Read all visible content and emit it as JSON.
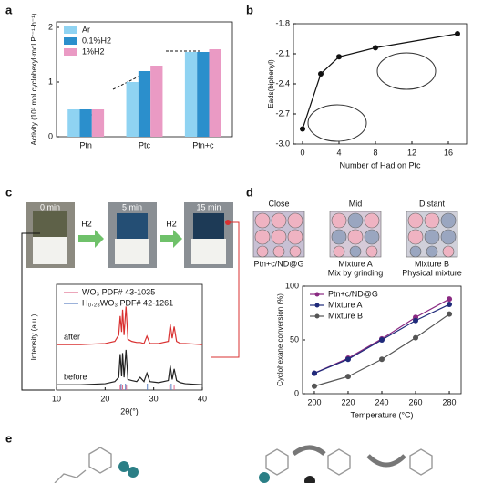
{
  "panel_labels": [
    "a",
    "b",
    "c",
    "d",
    "e"
  ],
  "chart_data": [
    {
      "type": "bar",
      "ylabel": "Activity (10³ mol cyclohexyl·mol Pt⁻¹·h⁻¹)",
      "categories": [
        "Ptn",
        "Ptc",
        "Ptn+c"
      ],
      "series": [
        {
          "name": "Ar",
          "color": "#8fd3f2",
          "values": [
            0.5,
            1.0,
            1.55
          ]
        },
        {
          "name": "0.1%H2",
          "color": "#2b8fcc",
          "values": [
            0.5,
            1.2,
            1.55
          ]
        },
        {
          "name": "1%H2",
          "color": "#ea9ac4",
          "values": [
            0.5,
            1.3,
            1.6
          ]
        }
      ],
      "ylim": [
        0,
        2.1
      ],
      "yticks": [
        0,
        1,
        2
      ],
      "legend": "top-left"
    },
    {
      "type": "line",
      "xlabel": "Number of Had on Ptc",
      "ylabel": "Eads(biphenyl)",
      "x": [
        0,
        2,
        4,
        8,
        17
      ],
      "series": [
        {
          "color": "#111111",
          "values": [
            -2.85,
            -2.3,
            -2.13,
            -2.04,
            -1.9
          ]
        }
      ],
      "xlim": [
        -1,
        18
      ],
      "xticks": [
        0,
        4,
        8,
        12,
        16
      ],
      "ylim": [
        -3.0,
        -1.8
      ],
      "yticks": [
        {
          "value": -3.0,
          "label": "-3.0"
        },
        {
          "value": -2.7,
          "label": "-2.7"
        },
        {
          "value": -2.4,
          "label": "-2.4"
        },
        {
          "value": -2.1,
          "label": "-2.1"
        },
        -1.8
      ],
      "markers": true
    },
    {
      "type": "line",
      "xlabel": "2θ(°)",
      "ylabel": "Intensity (a.u.)",
      "photo_labels": [
        "0 min",
        "5 min",
        "15 min"
      ],
      "arrow_labels": [
        "H2",
        "H2"
      ],
      "x": [
        10,
        15,
        20,
        22,
        22.8,
        23.1,
        23.4,
        23.6,
        23.9,
        24.3,
        24.7,
        25.5,
        26.5,
        27.2,
        28,
        28.6,
        29.2,
        31,
        33,
        33.4,
        33.8,
        34.2,
        34.7,
        35.5,
        36.5,
        40
      ],
      "series": [
        {
          "name": "after",
          "color": "#d93030",
          "values": [
            4.3,
            4.3,
            4.4,
            4.6,
            5.2,
            7.0,
            5.5,
            7.6,
            5.2,
            7.9,
            4.8,
            4.6,
            4.5,
            4.5,
            4.4,
            5.1,
            4.4,
            4.4,
            4.6,
            6.2,
            4.9,
            6.0,
            4.6,
            4.4,
            4.4,
            4.3
          ]
        },
        {
          "name": "before",
          "color": "#222222",
          "values": [
            0.5,
            0.5,
            0.6,
            0.8,
            1.2,
            3.4,
            1.3,
            3.5,
            1.2,
            3.8,
            1.0,
            0.9,
            0.8,
            1.2,
            0.8,
            1.6,
            0.8,
            0.7,
            0.9,
            2.3,
            1.0,
            2.0,
            0.9,
            0.7,
            0.6,
            0.5
          ]
        }
      ],
      "references": [
        {
          "name": "WO₃ PDF# 43-1035",
          "color": "#e06a8c",
          "x": [
            23.1,
            23.6,
            24.4,
            33.3,
            34.2
          ]
        },
        {
          "name": "H₀.₂₃WO₃ PDF# 42-1261",
          "color": "#5a7fc0",
          "x": [
            23.3,
            24.2,
            28.7,
            33.6
          ]
        }
      ],
      "xlim": [
        10,
        40
      ],
      "xticks": [
        10,
        20,
        30,
        40
      ],
      "ylim": [
        0,
        10
      ],
      "markers": false,
      "legend": "top"
    },
    {
      "type": "line",
      "xlabel": "Temperature (°C)",
      "ylabel": "Cyclohexane conversion (%)",
      "schematic_titles": [
        "Close",
        "Mid",
        "Distant"
      ],
      "schematic_captions": [
        "Ptn+c/ND@G",
        "Mixture A",
        "Mix by grinding",
        "Mixture B",
        "Physical mixture"
      ],
      "x": [
        200,
        220,
        240,
        260,
        280
      ],
      "series": [
        {
          "name": "Ptn+c/ND@G",
          "color": "#8a2a82",
          "values": [
            19,
            33,
            51,
            71,
            88
          ]
        },
        {
          "name": "Mixture A",
          "color": "#1f2a7a",
          "values": [
            19,
            32,
            50,
            68,
            83
          ]
        },
        {
          "name": "Mixture B",
          "color": "#555555",
          "values": [
            7,
            16,
            32,
            52,
            74
          ]
        }
      ],
      "xlim": [
        193,
        287
      ],
      "xticks": [
        200,
        220,
        240,
        260,
        280
      ],
      "ylim": [
        0,
        100
      ],
      "yticks": [
        0,
        50,
        100
      ],
      "markers": true,
      "legend": "top-left"
    }
  ]
}
